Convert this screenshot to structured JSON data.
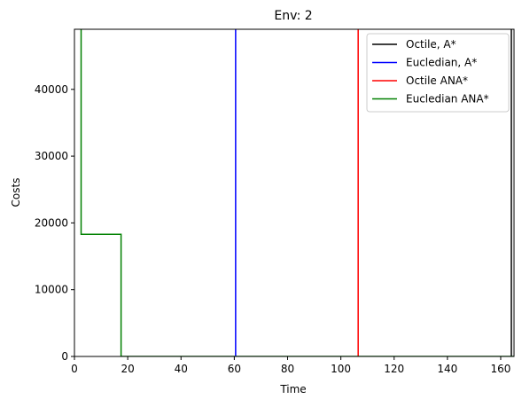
{
  "chart_data": {
    "type": "line",
    "title": "Env: 2",
    "xlabel": "Time",
    "ylabel": "Costs",
    "xlim": [
      0,
      165
    ],
    "ylim": [
      0,
      49000
    ],
    "xticks": [
      0,
      20,
      40,
      60,
      80,
      100,
      120,
      140,
      160
    ],
    "yticks": [
      0,
      10000,
      20000,
      30000,
      40000
    ],
    "grid": false,
    "legend_position": "top-right",
    "series": [
      {
        "name": "Octile, A*",
        "color": "#000000",
        "x": [
          164,
          164
        ],
        "y": [
          49000,
          0
        ]
      },
      {
        "name": "Eucledian, A*",
        "color": "#0000ff",
        "x": [
          60.5,
          60.5
        ],
        "y": [
          49000,
          0
        ]
      },
      {
        "name": "Octile ANA*",
        "color": "#ff0000",
        "x": [
          106.5,
          106.5
        ],
        "y": [
          49000,
          0
        ]
      },
      {
        "name": "Eucledian ANA*",
        "color": "#008000",
        "x": [
          2.5,
          2.5,
          17.5,
          17.5,
          165
        ],
        "y": [
          49000,
          18300,
          18300,
          0,
          0
        ]
      }
    ]
  }
}
